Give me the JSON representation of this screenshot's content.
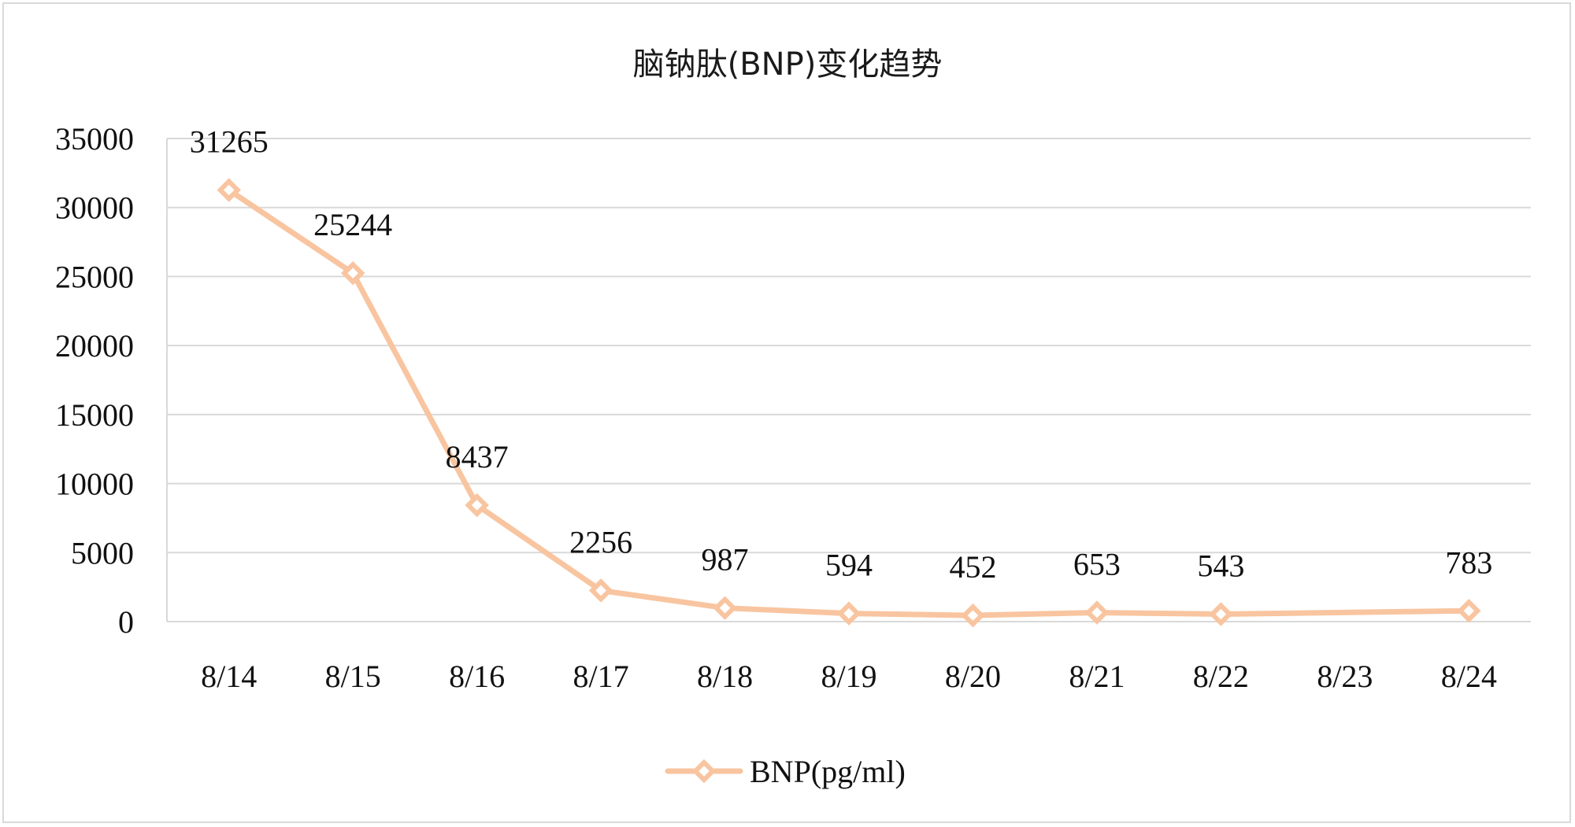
{
  "chart_data": {
    "type": "line",
    "title": "脑钠肽(BNP)变化趋势",
    "xlabel": "",
    "ylabel": "",
    "categories": [
      "8/14",
      "8/15",
      "8/16",
      "8/17",
      "8/18",
      "8/19",
      "8/20",
      "8/21",
      "8/22",
      "8/23",
      "8/24"
    ],
    "series": [
      {
        "name": "BNP(pg/ml)",
        "values": [
          31265,
          25244,
          8437,
          2256,
          987,
          594,
          452,
          653,
          543,
          null,
          783
        ],
        "color": "#f8c5a0",
        "marker": "diamond-open"
      }
    ],
    "ylim": [
      0,
      35000
    ],
    "yticks": [
      0,
      5000,
      10000,
      15000,
      20000,
      25000,
      30000,
      35000
    ],
    "grid": true,
    "gridColor": "#d9d9d9",
    "legend": "bottom",
    "data_labels": true
  }
}
